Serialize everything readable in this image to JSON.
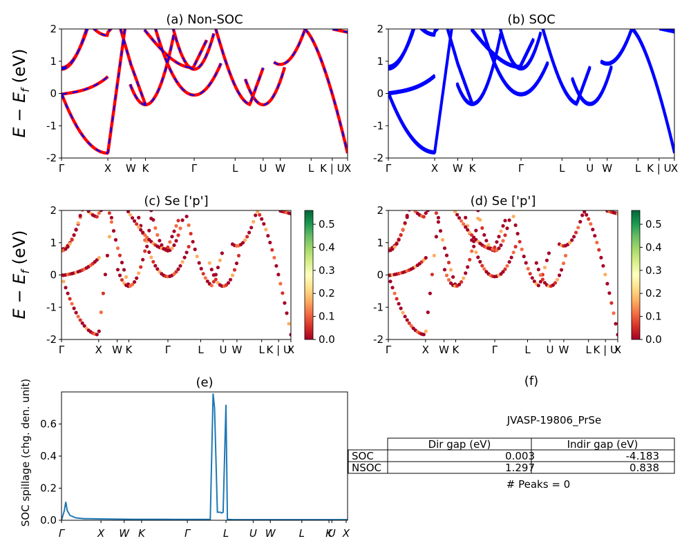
{
  "figure": {
    "ylabel_main": "E − E",
    "ylabel_sub": "f",
    "ylabel_unit": " (eV)",
    "k_labels_bands": [
      "Γ",
      "X",
      "W",
      "K",
      "Γ",
      "L",
      "U",
      "W",
      "L",
      "K | U",
      "X"
    ],
    "k_labels_spillage": [
      "Γ",
      "X",
      "W",
      "K",
      "Γ",
      "L",
      "U",
      "W",
      "L",
      "K",
      "U",
      "X"
    ]
  },
  "chart_data": [
    {
      "id": "a",
      "type": "line",
      "title": "(a) Non-SOC",
      "ylim": [
        -2,
        2
      ],
      "yticks": [
        -2,
        -1,
        0,
        1,
        2
      ],
      "series": [
        {
          "color": "#ff0000",
          "values": "red solid bands"
        },
        {
          "color": "#0000ff",
          "values": "blue dashed bands"
        }
      ]
    },
    {
      "id": "b",
      "type": "line",
      "title": "(b) SOC",
      "ylim": [
        -2,
        2
      ],
      "yticks": [
        -2,
        -1,
        0,
        1,
        2
      ],
      "series": [
        {
          "color": "#0000ff"
        }
      ]
    },
    {
      "id": "c",
      "type": "scatter",
      "title": "(c)  Se ['p']",
      "ylim": [
        -2,
        2
      ],
      "yticks": [
        -2,
        -1,
        0,
        1,
        2
      ],
      "colorbar": {
        "cmap": "RdYlGn",
        "range": [
          0,
          0.56
        ],
        "ticks": [
          "0.0",
          "0.1",
          "0.2",
          "0.3",
          "0.4",
          "0.5"
        ]
      }
    },
    {
      "id": "d",
      "type": "scatter",
      "title": "(d) Se ['p']",
      "ylim": [
        -2,
        2
      ],
      "yticks": [
        -2,
        -1,
        0,
        1,
        2
      ],
      "colorbar": {
        "cmap": "RdYlGn",
        "range": [
          0,
          0.56
        ],
        "ticks": [
          "0.0",
          "0.1",
          "0.2",
          "0.3",
          "0.4",
          "0.5"
        ]
      }
    },
    {
      "id": "e",
      "type": "line",
      "title": "(e)",
      "ylabel": "SOC spillage (chg. den. unit)",
      "ylim": [
        0,
        0.8
      ],
      "yticks": [
        "0.0",
        "0.2",
        "0.4",
        "0.6"
      ],
      "x": [
        0,
        0.01,
        0.015,
        0.02,
        0.03,
        0.05,
        0.08,
        0.15,
        0.2,
        0.25,
        0.3,
        0.35,
        0.4,
        0.45,
        0.5,
        0.52,
        0.53,
        0.535,
        0.545,
        0.555,
        0.56,
        0.565,
        0.575,
        0.58,
        0.6,
        0.7,
        0.8,
        0.9,
        1.0
      ],
      "values": [
        0.0,
        0.06,
        0.115,
        0.06,
        0.03,
        0.015,
        0.01,
        0.008,
        0.007,
        0.006,
        0.006,
        0.006,
        0.005,
        0.005,
        0.005,
        0.005,
        0.79,
        0.7,
        0.05,
        0.05,
        0.045,
        0.05,
        0.72,
        0.005,
        0.004,
        0.004,
        0.004,
        0.004,
        0.004
      ],
      "series": [
        {
          "color": "#1f77b4"
        }
      ]
    },
    {
      "id": "f",
      "type": "table",
      "title": "(f)",
      "caption": "JVASP-19806_PrSe",
      "columns": [
        "Dir gap (eV)",
        "Indir gap (eV)"
      ],
      "rows": [
        {
          "label": "SOC",
          "values": [
            "0.003",
            "-4.183"
          ]
        },
        {
          "label": "NSOC",
          "values": [
            "1.297",
            "0.838"
          ]
        }
      ],
      "footer": "# Peaks = 0"
    }
  ]
}
